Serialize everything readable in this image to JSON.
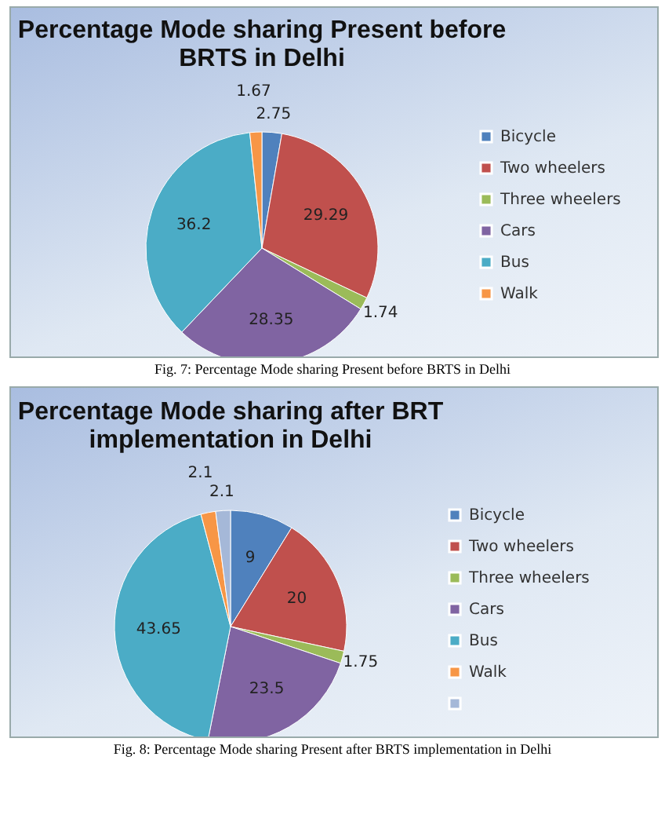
{
  "chart_data": [
    {
      "type": "pie",
      "title": "Percentage Mode sharing Present before BRTS in Delhi",
      "categories": [
        "Bicycle",
        "Two wheelers",
        "Three wheelers",
        "Cars",
        "Bus",
        "Walk"
      ],
      "values": [
        2.75,
        29.29,
        1.74,
        28.35,
        36.2,
        1.67
      ],
      "colors": [
        "#4f81bd",
        "#c0504d",
        "#9bbb59",
        "#8064a2",
        "#4bacc6",
        "#f79646"
      ],
      "data_labels": true,
      "legend": "right",
      "annotations": [
        "Fig. 7: Percentage Mode sharing Present before BRTS in Delhi"
      ]
    },
    {
      "type": "pie",
      "title": "Percentage Mode sharing after BRT implementation in Delhi",
      "categories": [
        "Bicycle",
        "Two wheelers",
        "Three wheelers",
        "Cars",
        "Bus",
        "Walk",
        null
      ],
      "values": [
        9,
        20,
        1.75,
        23.5,
        43.65,
        2.1,
        2.1
      ],
      "colors": [
        "#4f81bd",
        "#c0504d",
        "#9bbb59",
        "#8064a2",
        "#4bacc6",
        "#f79646",
        "#a5b8d8"
      ],
      "data_labels": true,
      "legend": "right",
      "annotations": [
        "Fig. 8: Percentage Mode sharing Present after BRTS implementation in Delhi"
      ]
    }
  ]
}
